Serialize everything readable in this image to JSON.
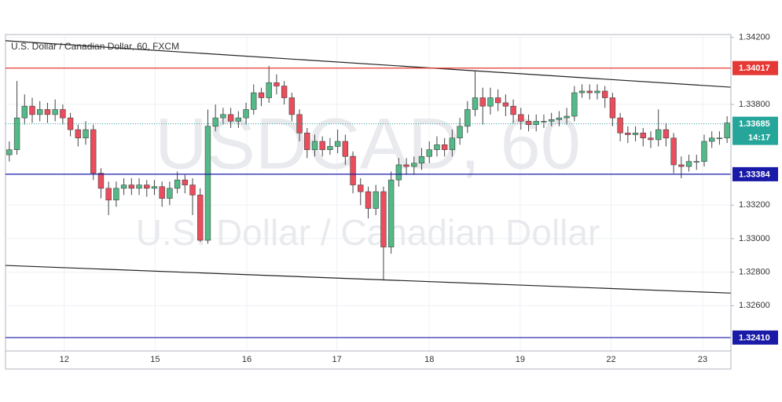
{
  "chart_data": {
    "type": "candlestick",
    "title": "U.S. Dollar / Canadian Dollar, 60, FXCM",
    "watermark": "USDCAD, 60",
    "watermark_subtitle": "U.S. Dollar / Canadian Dollar",
    "up_color": "#53b987",
    "down_color": "#eb4d5c",
    "xlim": [
      0,
      95
    ],
    "xticks": [
      {
        "value": 7.7,
        "label": "12"
      },
      {
        "value": 19.6,
        "label": "15"
      },
      {
        "value": 31.6,
        "label": "16"
      },
      {
        "value": 43.4,
        "label": "17"
      },
      {
        "value": 55.5,
        "label": "18"
      },
      {
        "value": 67.4,
        "label": "19"
      },
      {
        "value": 79.3,
        "label": "22"
      },
      {
        "value": 91.3,
        "label": "23"
      }
    ],
    "ylim": [
      1.3233,
      1.34217
    ],
    "yticks": [
      {
        "value": 1.342,
        "label": "1.34200"
      },
      {
        "value": 1.338,
        "label": "1.33800"
      },
      {
        "value": 1.332,
        "label": "1.33200"
      },
      {
        "value": 1.33,
        "label": "1.33000"
      },
      {
        "value": 1.328,
        "label": "1.32800"
      },
      {
        "value": 1.326,
        "label": "1.32600"
      }
    ],
    "grid": true,
    "open": [
      1.335,
      1.3353,
      1.3372,
      1.3379,
      1.3374,
      1.3377,
      1.3374,
      1.3377,
      1.3372,
      1.3365,
      1.336,
      1.3365,
      1.3339,
      1.333,
      1.3323,
      1.333,
      1.3332,
      1.333,
      1.3332,
      1.333,
      1.3331,
      1.3324,
      1.333,
      1.3335,
      1.3332,
      1.3326,
      1.3299,
      1.3367,
      1.3372,
      1.3374,
      1.337,
      1.3372,
      1.3377,
      1.3387,
      1.3384,
      1.3393,
      1.3391,
      1.3384,
      1.3374,
      1.3363,
      1.3353,
      1.3358,
      1.3353,
      1.3355,
      1.3358,
      1.3349,
      1.3332,
      1.3328,
      1.3318,
      1.3328,
      1.3295,
      1.3335,
      1.3344,
      1.3343,
      1.3345,
      1.3349,
      1.3353,
      1.3356,
      1.3353,
      1.336,
      1.3367,
      1.3377,
      1.3384,
      1.3379,
      1.3384,
      1.3381,
      1.3379,
      1.3374,
      1.337,
      1.3368,
      1.337,
      1.337,
      1.3371,
      1.3372,
      1.3373,
      1.3387,
      1.3388,
      1.3387,
      1.3388,
      1.3384,
      1.3372,
      1.3363,
      1.3362,
      1.3363,
      1.336,
      1.3359,
      1.3365,
      1.336,
      1.3344,
      1.3343,
      1.3346,
      1.3346,
      1.3358,
      1.336,
      1.336
    ],
    "high": [
      1.3358,
      1.3394,
      1.3386,
      1.3384,
      1.3382,
      1.3381,
      1.3383,
      1.338,
      1.3375,
      1.3368,
      1.337,
      1.3368,
      1.3342,
      1.3334,
      1.3334,
      1.3336,
      1.3336,
      1.3336,
      1.3335,
      1.3335,
      1.3334,
      1.3334,
      1.334,
      1.3338,
      1.3336,
      1.333,
      1.3377,
      1.338,
      1.3378,
      1.3378,
      1.3376,
      1.3381,
      1.3392,
      1.339,
      1.3403,
      1.3398,
      1.3394,
      1.3387,
      1.3377,
      1.3366,
      1.3362,
      1.3361,
      1.336,
      1.3365,
      1.3362,
      1.3352,
      1.3336,
      1.3331,
      1.3332,
      1.3331,
      1.334,
      1.3348,
      1.3348,
      1.3349,
      1.3354,
      1.3358,
      1.3361,
      1.336,
      1.3365,
      1.3372,
      1.3382,
      1.34,
      1.339,
      1.339,
      1.3389,
      1.3386,
      1.3383,
      1.3378,
      1.3374,
      1.3374,
      1.3374,
      1.3375,
      1.3376,
      1.3378,
      1.3391,
      1.3392,
      1.3392,
      1.3392,
      1.3391,
      1.3387,
      1.3375,
      1.3367,
      1.3367,
      1.3366,
      1.3364,
      1.3377,
      1.3369,
      1.3363,
      1.3349,
      1.335,
      1.335,
      1.3362,
      1.3364,
      1.3364,
      1.3373
    ],
    "low": [
      1.3346,
      1.335,
      1.3368,
      1.3369,
      1.337,
      1.3369,
      1.337,
      1.3368,
      1.3361,
      1.3355,
      1.3356,
      1.3335,
      1.3324,
      1.3314,
      1.3319,
      1.3326,
      1.3326,
      1.3326,
      1.3325,
      1.3326,
      1.3319,
      1.332,
      1.3327,
      1.3327,
      1.3314,
      1.3298,
      1.3297,
      1.3364,
      1.3368,
      1.3366,
      1.3366,
      1.3368,
      1.3374,
      1.3379,
      1.3381,
      1.3386,
      1.338,
      1.337,
      1.3358,
      1.3348,
      1.3349,
      1.3349,
      1.335,
      1.3351,
      1.3344,
      1.3327,
      1.332,
      1.3312,
      1.3314,
      1.3275,
      1.3291,
      1.3331,
      1.3338,
      1.3338,
      1.3341,
      1.3345,
      1.3349,
      1.3349,
      1.3349,
      1.3356,
      1.3363,
      1.3373,
      1.3368,
      1.3374,
      1.3376,
      1.3373,
      1.3369,
      1.3365,
      1.3364,
      1.3364,
      1.3366,
      1.3367,
      1.3367,
      1.3368,
      1.337,
      1.3384,
      1.3383,
      1.3383,
      1.3378,
      1.3367,
      1.3358,
      1.3357,
      1.3358,
      1.3355,
      1.3354,
      1.3355,
      1.3355,
      1.3339,
      1.3336,
      1.334,
      1.3341,
      1.3343,
      1.3354,
      1.3356,
      1.3357
    ],
    "close": [
      1.3353,
      1.3372,
      1.3379,
      1.3374,
      1.3377,
      1.3374,
      1.3377,
      1.3372,
      1.3365,
      1.336,
      1.3365,
      1.3339,
      1.333,
      1.3323,
      1.333,
      1.3332,
      1.333,
      1.3332,
      1.333,
      1.3331,
      1.3324,
      1.333,
      1.3335,
      1.3332,
      1.3326,
      1.3299,
      1.3367,
      1.3372,
      1.3374,
      1.337,
      1.3372,
      1.3377,
      1.3387,
      1.3384,
      1.3393,
      1.3391,
      1.3384,
      1.3374,
      1.3363,
      1.3353,
      1.3358,
      1.3353,
      1.3355,
      1.3358,
      1.3349,
      1.3332,
      1.3328,
      1.3318,
      1.3328,
      1.3295,
      1.3335,
      1.3344,
      1.3343,
      1.3345,
      1.3349,
      1.3353,
      1.3356,
      1.3353,
      1.336,
      1.3367,
      1.3377,
      1.3384,
      1.3379,
      1.3384,
      1.3381,
      1.3379,
      1.3374,
      1.337,
      1.3368,
      1.337,
      1.337,
      1.3371,
      1.3372,
      1.3373,
      1.3387,
      1.3388,
      1.3387,
      1.3388,
      1.3384,
      1.3372,
      1.3363,
      1.3362,
      1.3363,
      1.336,
      1.3359,
      1.3365,
      1.336,
      1.3344,
      1.3343,
      1.3346,
      1.3346,
      1.3358,
      1.336,
      1.336,
      1.3369
    ],
    "hlines": [
      {
        "value": 1.34017,
        "color": "#e53935"
      },
      {
        "value": 1.33384,
        "color": "#1a1aa8"
      },
      {
        "value": {
          "value": 1.3241,
          "label": "1.32410"
        },
        "color": "#1a1aa8"
      }
    ],
    "trendlines": [
      {
        "x": [
          0,
          95
        ],
        "y": [
          1.3418,
          1.33903
        ],
        "color": "#222222"
      },
      {
        "x": [
          0,
          95
        ],
        "y": [
          1.3284,
          1.32675
        ],
        "color": "#222222"
      }
    ],
    "current_price": {
      "value": 1.33685,
      "countdown": "14:17",
      "color": "#26a69a"
    }
  }
}
